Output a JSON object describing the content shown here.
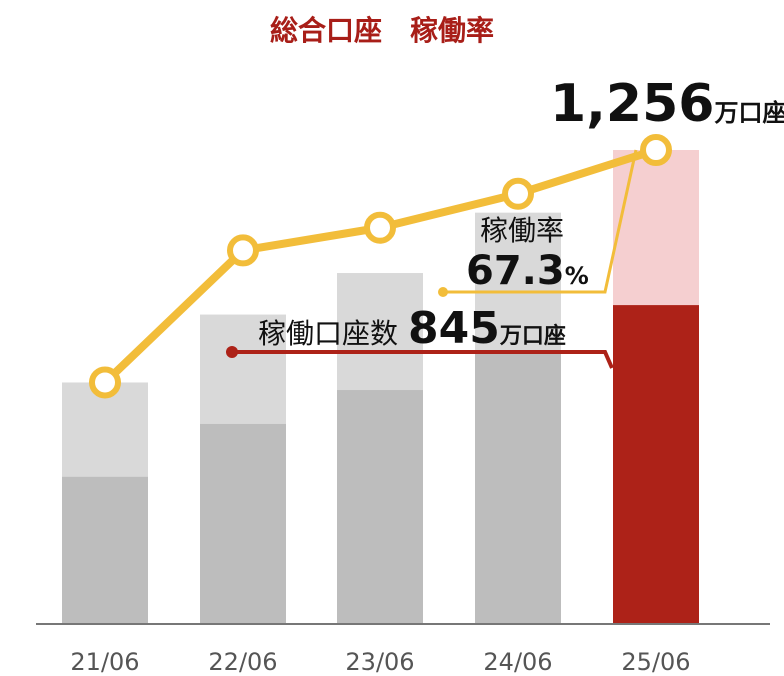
{
  "chart_data": {
    "type": "bar",
    "title": "総合口座　稼働率",
    "categories": [
      "21/06",
      "22/06",
      "23/06",
      "24/06",
      "25/06"
    ],
    "series": [
      {
        "name": "稼働口座数",
        "kind": "bar-lower",
        "values": [
          390,
          530,
          620,
          720,
          845
        ]
      },
      {
        "name": "総合口座",
        "kind": "bar-total",
        "values": [
          640,
          820,
          930,
          1090,
          1256
        ]
      },
      {
        "name": "稼働率",
        "kind": "line",
        "values": [
          640,
          990,
          1050,
          1140,
          1256
        ]
      }
    ],
    "ylim": [
      0,
      1256
    ],
    "annotations": {
      "total": {
        "value": "1,256",
        "unit": "万口座"
      },
      "rate": {
        "label": "稼働率",
        "value": "67.3",
        "unit": "%"
      },
      "active": {
        "label": "稼働口座数",
        "value": "845",
        "unit": "万口座"
      }
    },
    "colors": {
      "title": "#a81e18",
      "bar_upper": "#d9d9d9",
      "bar_lower": "#bdbdbd",
      "highlight_upper": "#f5cfd0",
      "highlight_lower": "#ad2218",
      "line": "#f2bd3a",
      "active_leader": "#ad2218",
      "axis": "#777777",
      "tick_text": "#555555"
    }
  }
}
